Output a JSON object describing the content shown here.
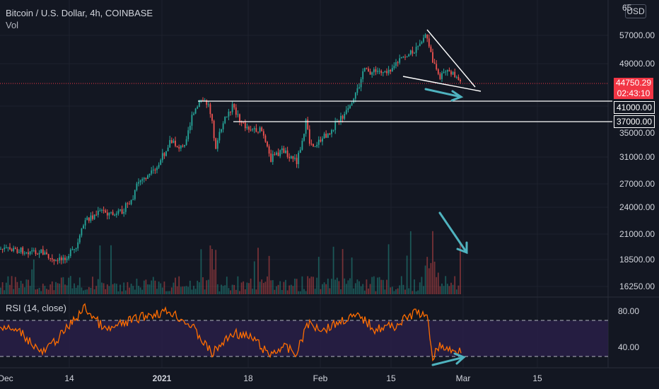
{
  "legend": {
    "symbol": "Bitcoin / U.S. Dollar, 4h, COINBASE",
    "volume_label": "Vol"
  },
  "currency_button": "USD",
  "price_axis": {
    "partial_top_label": "65",
    "ticks": [
      "57000.00",
      "49000.00",
      "41000.00",
      "37000.00",
      "35000.00",
      "31000.00",
      "27000.00",
      "24000.00",
      "21000.00",
      "18500.00",
      "16250.00"
    ]
  },
  "current_price": {
    "value": "44750.29",
    "countdown": "02:43:10"
  },
  "levels": [
    {
      "label": "41000.00"
    },
    {
      "label": "37000.00"
    }
  ],
  "rsi": {
    "label": "RSI (14, close)",
    "ticks": [
      "80.00",
      "40.00"
    ]
  },
  "date_axis": [
    "Dec",
    "14",
    "2021",
    "18",
    "Feb",
    "15",
    "Mar",
    "15"
  ],
  "colors": {
    "background": "#131722",
    "up": "#26a69a",
    "down": "#ef5350",
    "rsi_line": "#ff6d00",
    "rsi_band": "#2a1f4a",
    "annotation_arrow": "#4fb3bf",
    "current_price": "#f23645"
  },
  "chart_data": {
    "type": "candlestick",
    "interval": "4h",
    "key_prices": {
      "high_approx": 58300,
      "current": 44750.29,
      "support_1": 41000,
      "support_2": 37000
    },
    "rsi_levels": {
      "upper": 70,
      "lower": 30
    }
  }
}
